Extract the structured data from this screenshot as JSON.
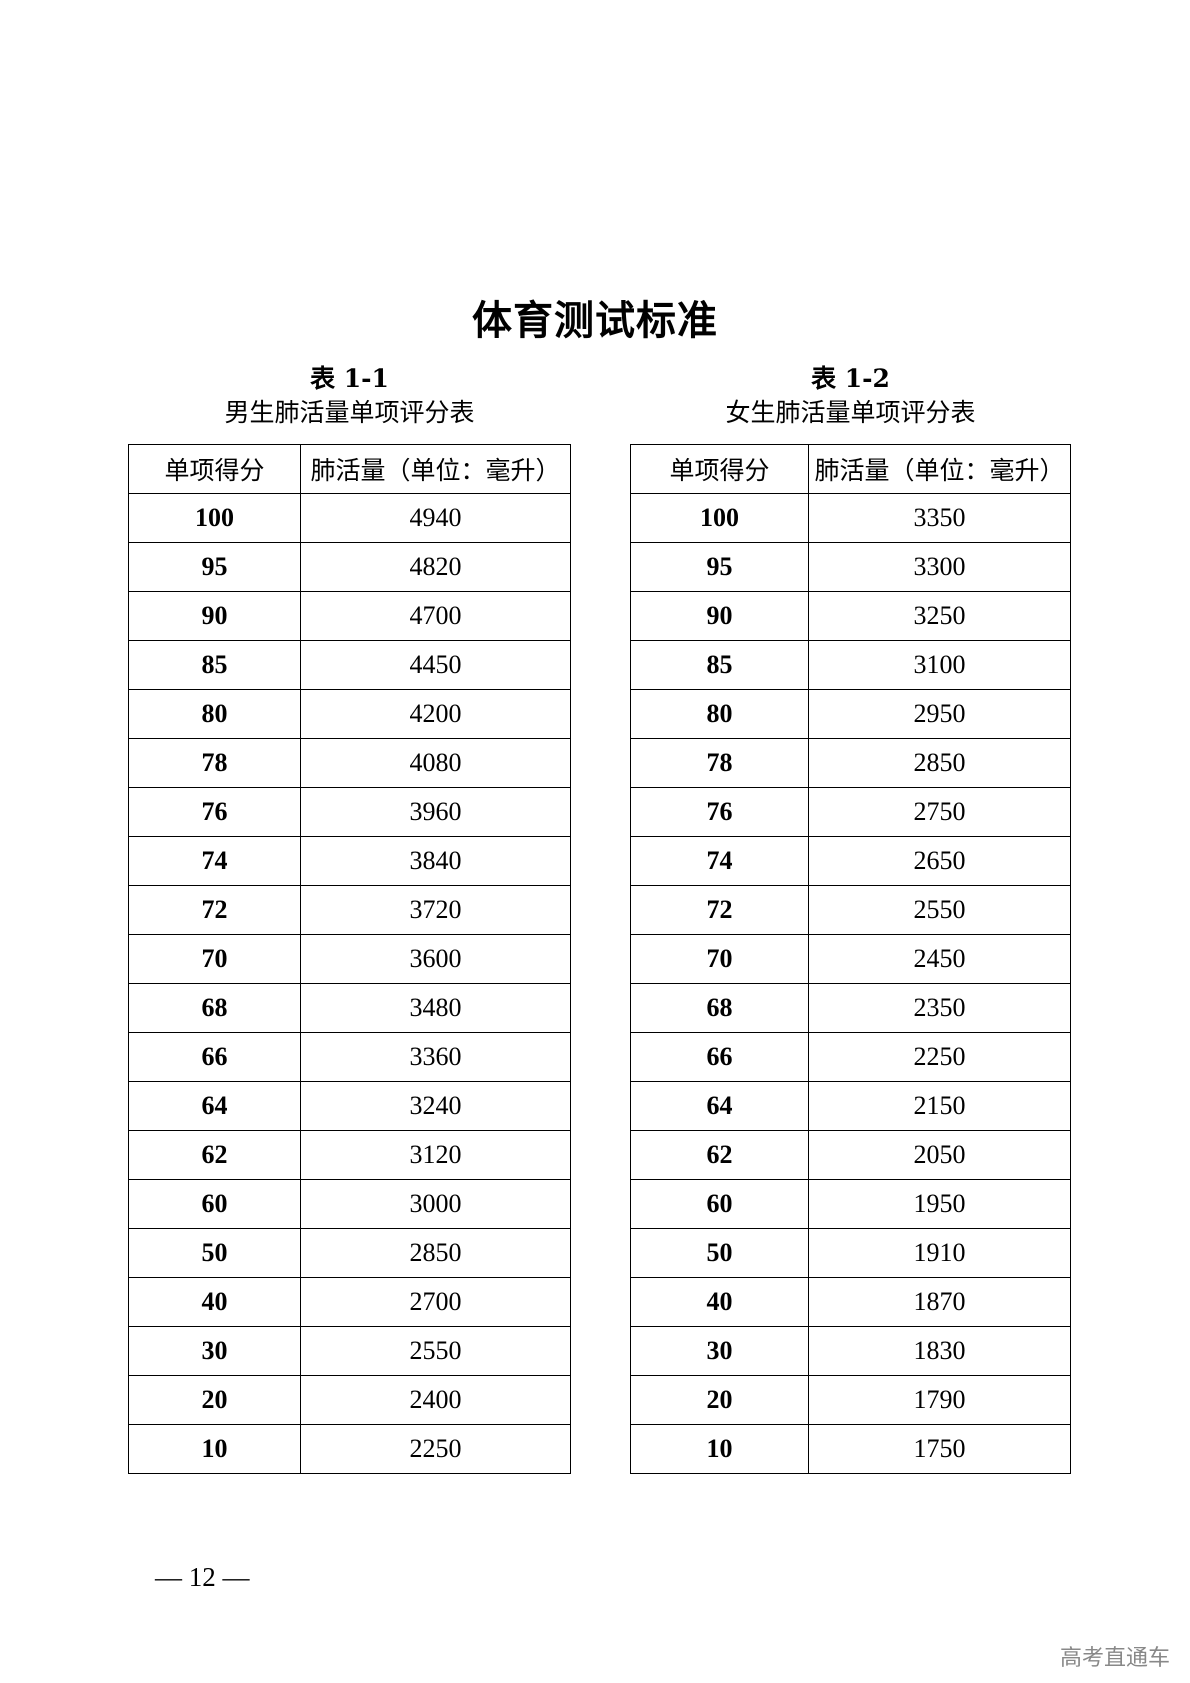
{
  "title": "体育测试标准",
  "tables": [
    {
      "number": "表 1-1",
      "caption": "男生肺活量单项评分表",
      "headers": [
        "单项得分",
        "肺活量（单位：毫升）"
      ],
      "rows": [
        [
          "100",
          "4940"
        ],
        [
          "95",
          "4820"
        ],
        [
          "90",
          "4700"
        ],
        [
          "85",
          "4450"
        ],
        [
          "80",
          "4200"
        ],
        [
          "78",
          "4080"
        ],
        [
          "76",
          "3960"
        ],
        [
          "74",
          "3840"
        ],
        [
          "72",
          "3720"
        ],
        [
          "70",
          "3600"
        ],
        [
          "68",
          "3480"
        ],
        [
          "66",
          "3360"
        ],
        [
          "64",
          "3240"
        ],
        [
          "62",
          "3120"
        ],
        [
          "60",
          "3000"
        ],
        [
          "50",
          "2850"
        ],
        [
          "40",
          "2700"
        ],
        [
          "30",
          "2550"
        ],
        [
          "20",
          "2400"
        ],
        [
          "10",
          "2250"
        ]
      ]
    },
    {
      "number": "表 1-2",
      "caption": "女生肺活量单项评分表",
      "headers": [
        "单项得分",
        "肺活量（单位：毫升）"
      ],
      "rows": [
        [
          "100",
          "3350"
        ],
        [
          "95",
          "3300"
        ],
        [
          "90",
          "3250"
        ],
        [
          "85",
          "3100"
        ],
        [
          "80",
          "2950"
        ],
        [
          "78",
          "2850"
        ],
        [
          "76",
          "2750"
        ],
        [
          "74",
          "2650"
        ],
        [
          "72",
          "2550"
        ],
        [
          "70",
          "2450"
        ],
        [
          "68",
          "2350"
        ],
        [
          "66",
          "2250"
        ],
        [
          "64",
          "2150"
        ],
        [
          "62",
          "2050"
        ],
        [
          "60",
          "1950"
        ],
        [
          "50",
          "1910"
        ],
        [
          "40",
          "1870"
        ],
        [
          "30",
          "1830"
        ],
        [
          "20",
          "1790"
        ],
        [
          "10",
          "1750"
        ]
      ]
    }
  ],
  "page_number": "— 12 —",
  "watermark": "高考直通车"
}
